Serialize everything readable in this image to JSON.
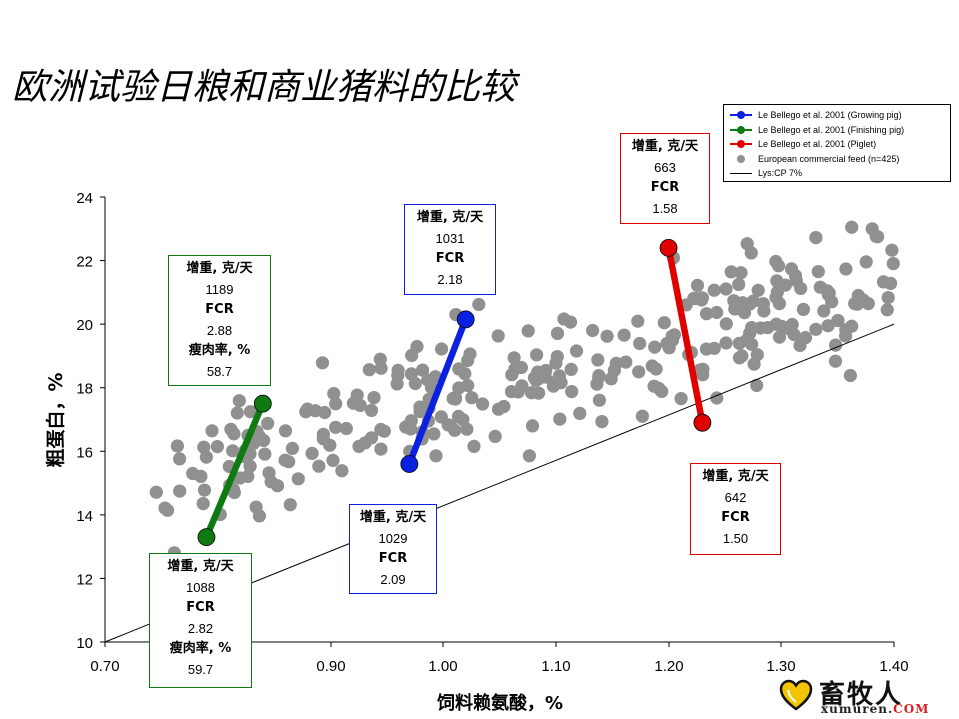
{
  "slide": {
    "title": "欧洲试验日粮和商业猪料的比较"
  },
  "chart_data": {
    "type": "scatter",
    "xlabel": "饲料赖氨酸，%",
    "ylabel": "粗蛋白，%",
    "xlim": [
      0.7,
      1.4
    ],
    "ylim": [
      10,
      24
    ],
    "x_ticks": [
      "0.70",
      "0.90",
      "1.00",
      "1.10",
      "1.20",
      "1.30",
      "1.40"
    ],
    "y_ticks": [
      "10",
      "12",
      "14",
      "16",
      "18",
      "20",
      "22",
      "24"
    ],
    "grid": false,
    "legend_position": "top-right",
    "colors": {
      "growing": "#0b20e0",
      "finishing": "#0f7a12",
      "piglet": "#e00000",
      "commercial": "#909090",
      "ref_line": "#000000"
    },
    "series": [
      {
        "name": "Le Bellego et al. 2001 (Growing pig)",
        "points": [
          [
            0.97,
            15.6
          ],
          [
            1.02,
            20.15
          ]
        ]
      },
      {
        "name": "Le Bellego et al. 2001 (Finishing pig)",
        "points": [
          [
            0.79,
            13.3
          ],
          [
            0.84,
            17.5
          ]
        ]
      },
      {
        "name": "Le Bellego et al. 2001 (Piglet)",
        "points": [
          [
            1.2,
            22.4
          ],
          [
            1.23,
            16.9
          ]
        ]
      },
      {
        "name": "European commercial feed (n=425)",
        "points": []
      },
      {
        "name": "Lys:CP 7%",
        "line": [
          [
            0.7,
            10.0
          ],
          [
            1.4,
            20.0
          ]
        ]
      }
    ],
    "annotations": [
      {
        "id": "finishing-high",
        "lines": [
          [
            "增重, 克/天",
            "hdr"
          ],
          [
            "1189",
            "val"
          ],
          [
            "FCR",
            "hdr"
          ],
          [
            "2.88",
            "val"
          ],
          [
            "瘦肉率, %",
            "hdr"
          ],
          [
            "58.7",
            "val"
          ]
        ]
      },
      {
        "id": "finishing-low",
        "lines": [
          [
            "增重, 克/天",
            "hdr"
          ],
          [
            "1088",
            "val"
          ],
          [
            "FCR",
            "hdr"
          ],
          [
            "2.82",
            "val"
          ],
          [
            "瘦肉率, %",
            "hdr"
          ],
          [
            "59.7",
            "val"
          ]
        ]
      },
      {
        "id": "growing-high",
        "lines": [
          [
            "增重, 克/天",
            "hdr"
          ],
          [
            "1031",
            "val"
          ],
          [
            "FCR",
            "hdr"
          ],
          [
            "2.18",
            "val"
          ]
        ]
      },
      {
        "id": "growing-low",
        "lines": [
          [
            "增重, 克/天",
            "hdr"
          ],
          [
            "1029",
            "val"
          ],
          [
            "FCR",
            "hdr"
          ],
          [
            "2.09",
            "val"
          ]
        ]
      },
      {
        "id": "piglet-high",
        "lines": [
          [
            "增重, 克/天",
            "hdr"
          ],
          [
            "663",
            "val"
          ],
          [
            "FCR",
            "hdr"
          ],
          [
            "1.58",
            "val"
          ]
        ]
      },
      {
        "id": "piglet-low",
        "lines": [
          [
            "增重, 克/天",
            "hdr"
          ],
          [
            "642",
            "val"
          ],
          [
            "FCR",
            "hdr"
          ],
          [
            "1.50",
            "val"
          ]
        ]
      }
    ]
  },
  "legend": {
    "items": [
      {
        "label": "Le Bellego et al. 2001 (Growing pig)",
        "color": "#0b20e0",
        "kind": "line-marker"
      },
      {
        "label": "Le Bellego et al. 2001 (Finishing pig)",
        "color": "#0f7a12",
        "kind": "line-marker"
      },
      {
        "label": "Le Bellego et al. 2001 (Piglet)",
        "color": "#e00000",
        "kind": "line-marker"
      },
      {
        "label": "European commercial feed (n=425)",
        "color": "#909090",
        "kind": "marker"
      },
      {
        "label": "Lys:CP 7%",
        "color": "#000000",
        "kind": "line"
      }
    ]
  },
  "logo": {
    "cn": "畜牧人",
    "en_main": "xumuren.",
    "en_suffix": "COM"
  }
}
